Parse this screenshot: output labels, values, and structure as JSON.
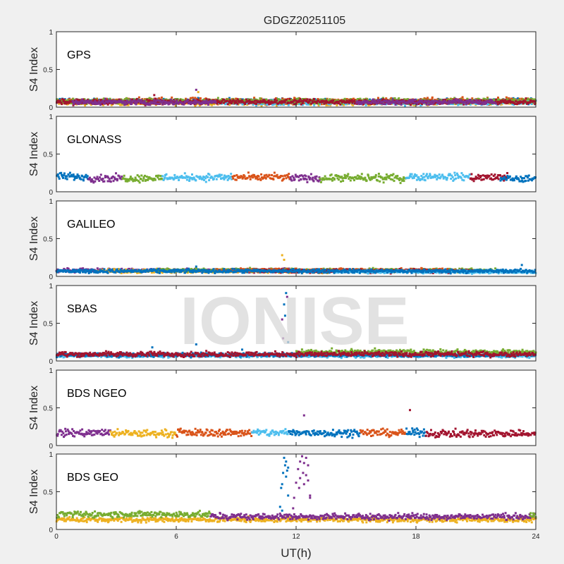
{
  "chart_data": {
    "type": "scatter",
    "title": "GDGZ20251105",
    "xlabel": "UT(h)",
    "ylabel": "S4 Index",
    "xlim": [
      0,
      24
    ],
    "ylim": [
      0,
      1
    ],
    "xticks": [
      "0",
      "6",
      "12",
      "18",
      "24"
    ],
    "yticks": [
      "0",
      "0.5",
      "1"
    ],
    "watermark": "IONISE",
    "colors": {
      "blue": "#0072BD",
      "orange": "#D95319",
      "yellow": "#EDB120",
      "purple": "#7E2F8E",
      "green": "#77AC30",
      "cyan": "#4DBEEE",
      "red": "#A2142F"
    },
    "panels": [
      {
        "name": "GPS",
        "segments": [
          {
            "color": "yellow",
            "t": [
              0,
              24
            ],
            "level": 0.06,
            "noise": 0.02
          },
          {
            "color": "blue",
            "t": [
              0,
              24
            ],
            "level": 0.08,
            "noise": 0.02
          },
          {
            "color": "orange",
            "t": [
              0,
              24
            ],
            "level": 0.08,
            "noise": 0.025
          },
          {
            "color": "cyan",
            "t": [
              8,
              24
            ],
            "level": 0.06,
            "noise": 0.02
          },
          {
            "color": "green",
            "t": [
              0,
              24
            ],
            "level": 0.08,
            "noise": 0.02
          },
          {
            "color": "red",
            "t": [
              0,
              24
            ],
            "level": 0.07,
            "noise": 0.02
          },
          {
            "color": "purple",
            "t": [
              0.8,
              8
            ],
            "level": 0.065,
            "noise": 0.02
          },
          {
            "color": "purple",
            "t": [
              15,
              22
            ],
            "level": 0.07,
            "noise": 0.02
          }
        ],
        "spikes": [
          [
            7.0,
            0.23,
            "purple"
          ],
          [
            7.1,
            0.2,
            "yellow"
          ],
          [
            4.9,
            0.16,
            "red"
          ]
        ]
      },
      {
        "name": "GLONASS",
        "segments": [
          {
            "color": "blue",
            "t": [
              0,
              1.6
            ],
            "level": 0.2,
            "noise": 0.03
          },
          {
            "color": "purple",
            "t": [
              1.6,
              3.3
            ],
            "level": 0.18,
            "noise": 0.03
          },
          {
            "color": "green",
            "t": [
              3.3,
              5.3
            ],
            "level": 0.18,
            "noise": 0.03
          },
          {
            "color": "cyan",
            "t": [
              5.3,
              8.8
            ],
            "level": 0.19,
            "noise": 0.03
          },
          {
            "color": "orange",
            "t": [
              8.8,
              11.7
            ],
            "level": 0.19,
            "noise": 0.03
          },
          {
            "color": "purple",
            "t": [
              11.7,
              13.2
            ],
            "level": 0.18,
            "noise": 0.03
          },
          {
            "color": "green",
            "t": [
              13.2,
              17.5
            ],
            "level": 0.18,
            "noise": 0.03
          },
          {
            "color": "cyan",
            "t": [
              17.5,
              20.7
            ],
            "level": 0.2,
            "noise": 0.03
          },
          {
            "color": "red",
            "t": [
              20.7,
              22.6
            ],
            "level": 0.19,
            "noise": 0.03
          },
          {
            "color": "blue",
            "t": [
              22.2,
              24
            ],
            "level": 0.17,
            "noise": 0.03
          }
        ],
        "spikes": []
      },
      {
        "name": "GALILEO",
        "segments": [
          {
            "color": "purple",
            "t": [
              0,
              12
            ],
            "level": 0.08,
            "noise": 0.015
          },
          {
            "color": "yellow",
            "t": [
              2,
              14
            ],
            "level": 0.07,
            "noise": 0.015
          },
          {
            "color": "green",
            "t": [
              5,
              22
            ],
            "level": 0.08,
            "noise": 0.015
          },
          {
            "color": "orange",
            "t": [
              8,
              20
            ],
            "level": 0.08,
            "noise": 0.015
          },
          {
            "color": "red",
            "t": [
              10,
              21
            ],
            "level": 0.07,
            "noise": 0.015
          },
          {
            "color": "cyan",
            "t": [
              14,
              24
            ],
            "level": 0.06,
            "noise": 0.012
          },
          {
            "color": "blue",
            "t": [
              0,
              24
            ],
            "level": 0.07,
            "noise": 0.015
          }
        ],
        "spikes": [
          [
            11.3,
            0.28,
            "yellow"
          ],
          [
            11.4,
            0.22,
            "yellow"
          ],
          [
            7.0,
            0.13,
            "blue"
          ],
          [
            23.3,
            0.15,
            "blue"
          ]
        ]
      },
      {
        "name": "SBAS",
        "segments": [
          {
            "color": "cyan",
            "t": [
              0,
              24
            ],
            "level": 0.07,
            "noise": 0.015
          },
          {
            "color": "blue",
            "t": [
              0,
              24
            ],
            "level": 0.08,
            "noise": 0.015
          },
          {
            "color": "green",
            "t": [
              12,
              24
            ],
            "level": 0.12,
            "noise": 0.02
          },
          {
            "color": "red",
            "t": [
              0,
              24
            ],
            "level": 0.09,
            "noise": 0.02
          }
        ],
        "spikes": [
          [
            11.5,
            0.9,
            "blue"
          ],
          [
            11.4,
            0.75,
            "blue"
          ],
          [
            11.45,
            0.6,
            "blue"
          ],
          [
            11.6,
            0.25,
            "blue"
          ],
          [
            11.3,
            0.55,
            "purple"
          ],
          [
            11.35,
            0.3,
            "purple"
          ],
          [
            11.55,
            0.85,
            "purple"
          ],
          [
            4.8,
            0.18,
            "blue"
          ],
          [
            7.0,
            0.22,
            "blue"
          ],
          [
            9.3,
            0.15,
            "blue"
          ]
        ]
      },
      {
        "name": "BDS NGEO",
        "segments": [
          {
            "color": "purple",
            "t": [
              0,
              2.7
            ],
            "level": 0.17,
            "noise": 0.03
          },
          {
            "color": "yellow",
            "t": [
              2.7,
              6
            ],
            "level": 0.16,
            "noise": 0.03
          },
          {
            "color": "orange",
            "t": [
              6,
              9.8
            ],
            "level": 0.17,
            "noise": 0.03
          },
          {
            "color": "cyan",
            "t": [
              9.8,
              11.6
            ],
            "level": 0.17,
            "noise": 0.03
          },
          {
            "color": "blue",
            "t": [
              11.6,
              15.2
            ],
            "level": 0.17,
            "noise": 0.03
          },
          {
            "color": "orange",
            "t": [
              15.2,
              17.5
            ],
            "level": 0.17,
            "noise": 0.03
          },
          {
            "color": "blue",
            "t": [
              17.5,
              18.5
            ],
            "level": 0.17,
            "noise": 0.03
          },
          {
            "color": "red",
            "t": [
              18.5,
              24
            ],
            "level": 0.16,
            "noise": 0.03
          }
        ],
        "spikes": [
          [
            12.4,
            0.4,
            "purple"
          ],
          [
            17.7,
            0.47,
            "red"
          ]
        ]
      },
      {
        "name": "BDS GEO",
        "segments": [
          {
            "color": "yellow",
            "t": [
              0,
              24
            ],
            "level": 0.13,
            "noise": 0.02
          },
          {
            "color": "green",
            "t": [
              0,
              7.7
            ],
            "level": 0.2,
            "noise": 0.025
          },
          {
            "color": "purple",
            "t": [
              7.7,
              24
            ],
            "level": 0.17,
            "noise": 0.025
          },
          {
            "color": "green",
            "t": [
              23.7,
              24
            ],
            "level": 0.18,
            "noise": 0.02
          }
        ],
        "spikes": [
          [
            11.4,
            0.95,
            "blue"
          ],
          [
            11.5,
            0.9,
            "blue"
          ],
          [
            11.45,
            0.85,
            "blue"
          ],
          [
            11.6,
            0.82,
            "blue"
          ],
          [
            11.55,
            0.78,
            "blue"
          ],
          [
            11.35,
            0.75,
            "blue"
          ],
          [
            11.5,
            0.7,
            "blue"
          ],
          [
            11.3,
            0.6,
            "blue"
          ],
          [
            11.25,
            0.55,
            "blue"
          ],
          [
            11.6,
            0.45,
            "blue"
          ],
          [
            11.2,
            0.3,
            "blue"
          ],
          [
            11.3,
            0.25,
            "blue"
          ],
          [
            12.3,
            0.97,
            "purple"
          ],
          [
            12.5,
            0.95,
            "purple"
          ],
          [
            12.2,
            0.9,
            "purple"
          ],
          [
            12.4,
            0.88,
            "purple"
          ],
          [
            12.6,
            0.85,
            "purple"
          ],
          [
            12.1,
            0.8,
            "purple"
          ],
          [
            12.35,
            0.75,
            "purple"
          ],
          [
            12.5,
            0.72,
            "purple"
          ],
          [
            12.2,
            0.68,
            "purple"
          ],
          [
            12.6,
            0.65,
            "purple"
          ],
          [
            12.0,
            0.62,
            "purple"
          ],
          [
            12.4,
            0.6,
            "purple"
          ],
          [
            12.15,
            0.55,
            "purple"
          ],
          [
            12.7,
            0.45,
            "purple"
          ],
          [
            12.7,
            0.42,
            "purple"
          ],
          [
            11.9,
            0.42,
            "purple"
          ],
          [
            11.85,
            0.28,
            "purple"
          ]
        ]
      }
    ]
  }
}
